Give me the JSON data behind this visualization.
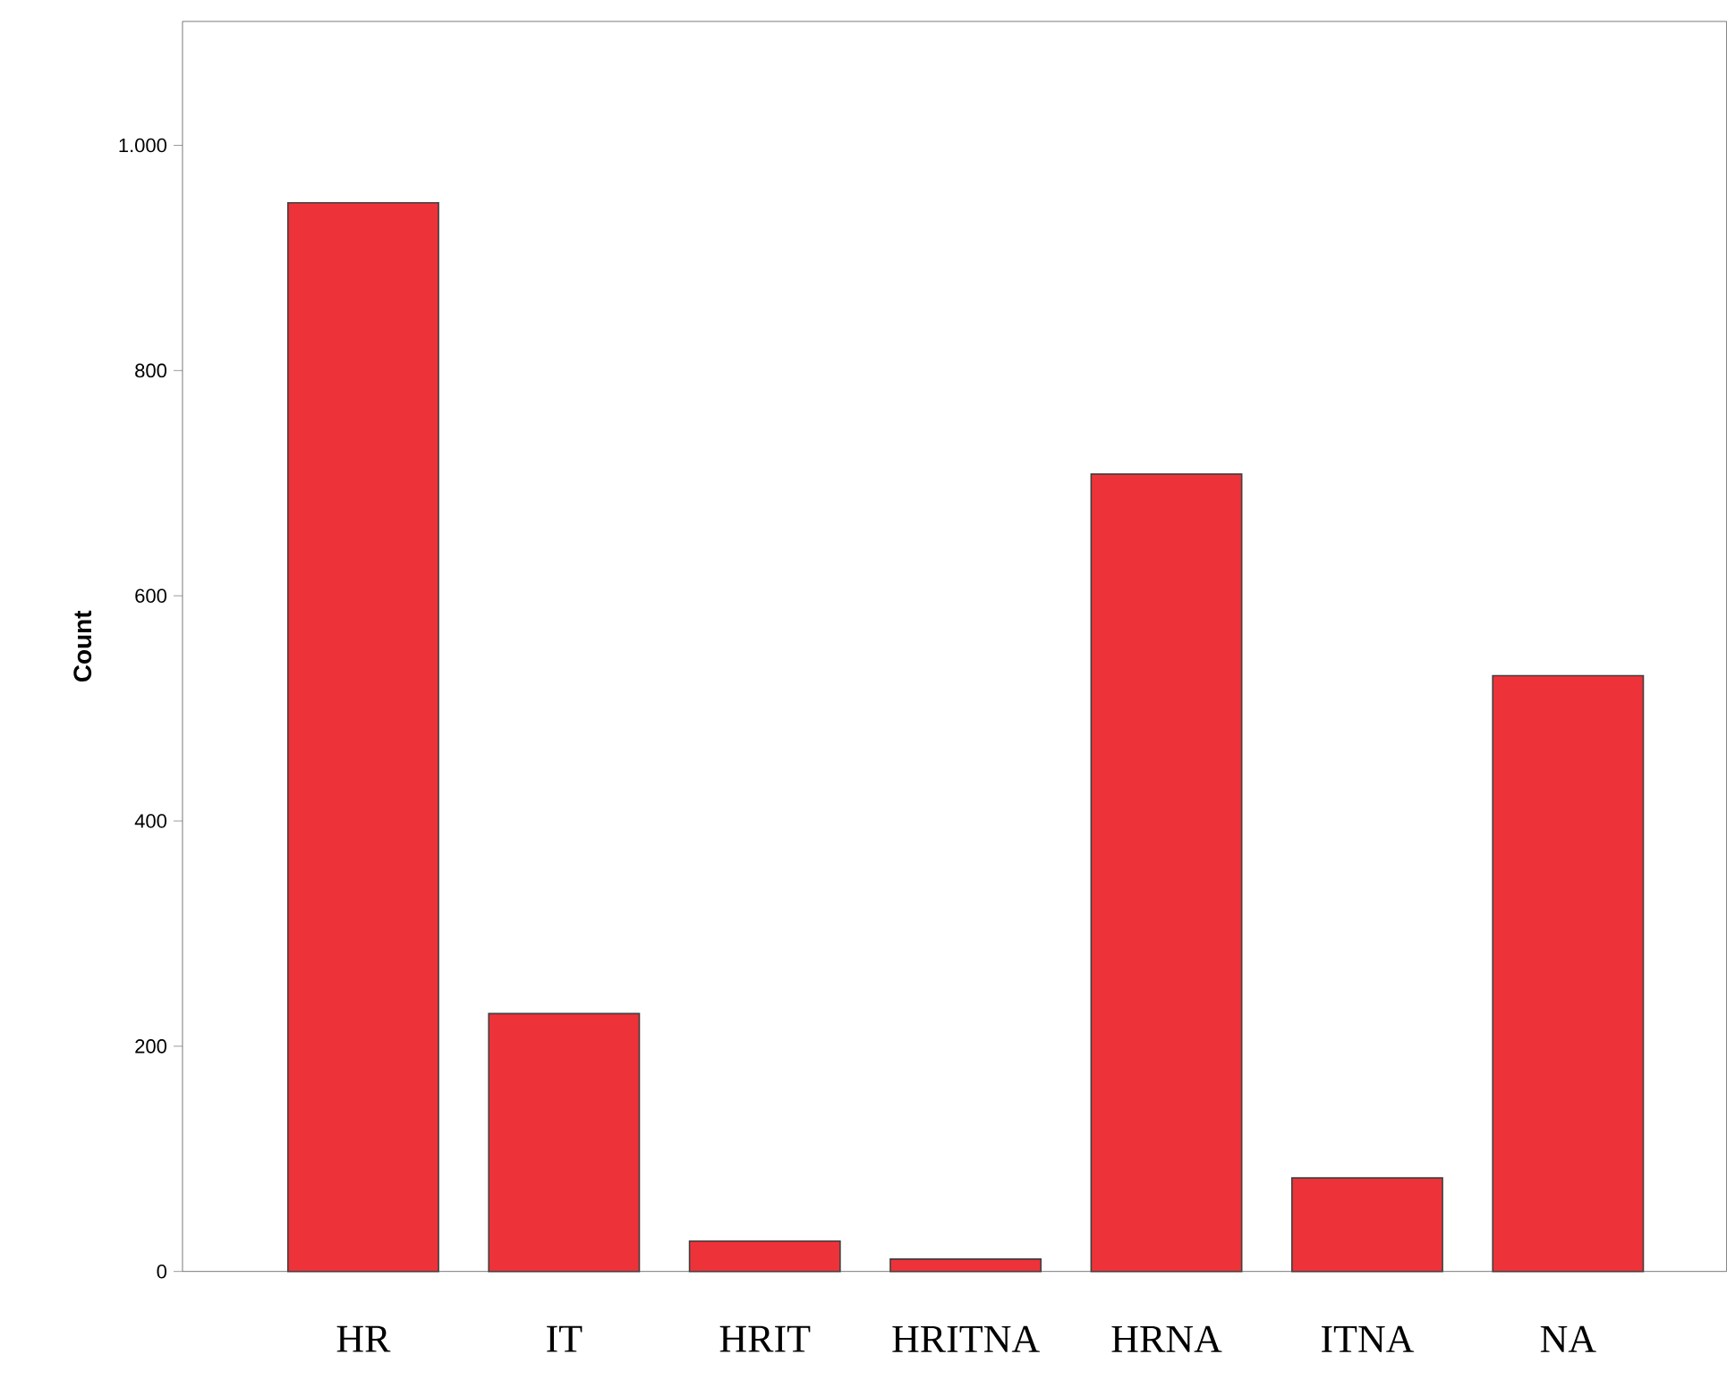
{
  "chart_data": {
    "type": "bar",
    "ylabel": "Count",
    "categories": [
      "HR",
      "IT",
      "HRIT",
      "HRITNA",
      "HRNA",
      "ITNA",
      "NA"
    ],
    "values": [
      949,
      229,
      27,
      11,
      708,
      83,
      529
    ],
    "color": "#ee3239",
    "ylim": [
      0,
      1110
    ],
    "yticks": [
      0,
      200,
      400,
      600,
      800,
      {
        "value": 1000,
        "label": "1.000"
      }
    ]
  }
}
